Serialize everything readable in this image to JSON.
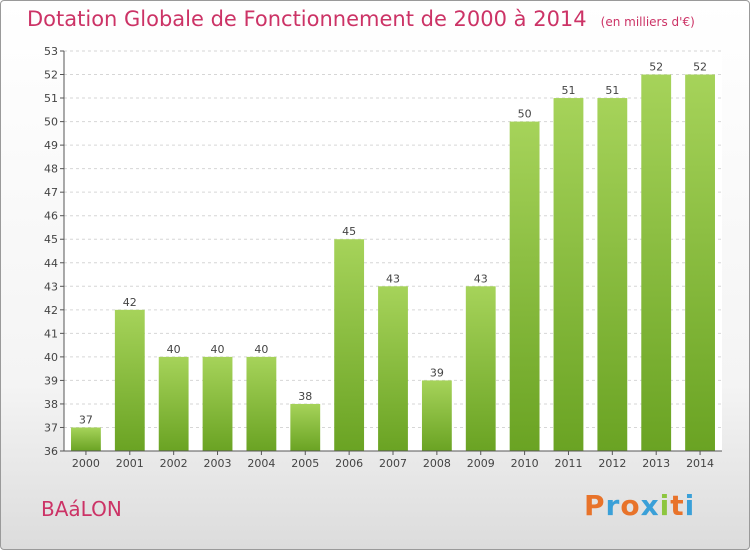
{
  "title": "Dotation Globale de Fonctionnement de 2000 à 2014",
  "subtitle": "(en milliers d'€)",
  "commune": "BAáLON",
  "logo": "Proxiti",
  "colors": {
    "title": "#cc3366",
    "bar_light": "#a6d35a",
    "bar_dark": "#6aa323",
    "logo": [
      "#e8732a",
      "#3aa0d8",
      "#e8732a",
      "#3aa0d8",
      "#8dc63f",
      "#e8732a",
      "#3aa0d8"
    ]
  },
  "chart_data": {
    "type": "bar",
    "title": "Dotation Globale de Fonctionnement de 2000 à 2014",
    "subtitle": "(en milliers d'€)",
    "categories": [
      "2000",
      "2001",
      "2002",
      "2003",
      "2004",
      "2005",
      "2006",
      "2007",
      "2008",
      "2009",
      "2010",
      "2011",
      "2012",
      "2013",
      "2014"
    ],
    "values": [
      37,
      42,
      40,
      40,
      40,
      38,
      45,
      43,
      39,
      43,
      50,
      51,
      51,
      52,
      52
    ],
    "ylim": [
      36,
      53
    ],
    "yticks": [
      36,
      37,
      38,
      39,
      40,
      41,
      42,
      43,
      44,
      45,
      46,
      47,
      48,
      49,
      50,
      51,
      52,
      53
    ],
    "grid": true,
    "data_labels": true
  }
}
